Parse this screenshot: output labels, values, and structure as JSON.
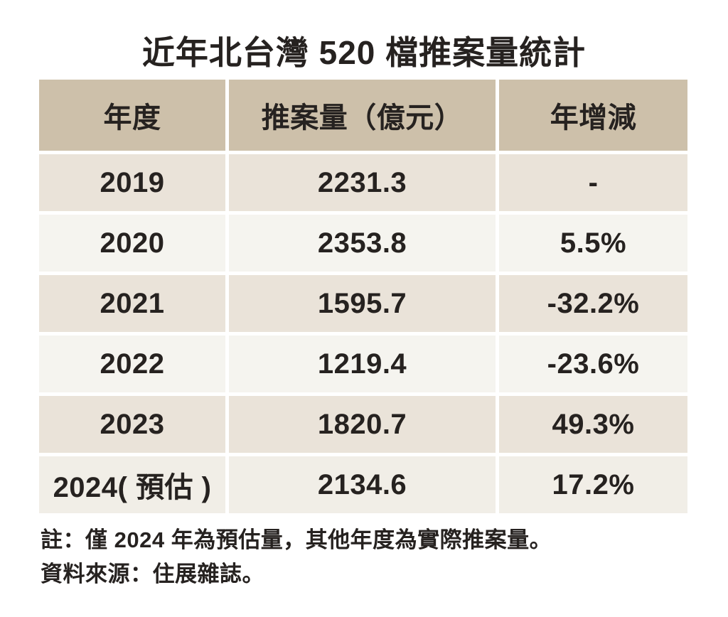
{
  "title": "近年北台灣 520 檔推案量統計",
  "header": {
    "year": "年度",
    "volume": "推案量（億元）",
    "yoy": "年增減"
  },
  "rows": [
    {
      "year": "2019",
      "volume": "2231.3",
      "yoy": "-"
    },
    {
      "year": "2020",
      "volume": "2353.8",
      "yoy": "5.5%"
    },
    {
      "year": "2021",
      "volume": "1595.7",
      "yoy": "-32.2%"
    },
    {
      "year": "2022",
      "volume": "1219.4",
      "yoy": "-23.6%"
    },
    {
      "year": "2023",
      "volume": "1820.7",
      "yoy": "49.3%"
    },
    {
      "year": "2024( 預估 )",
      "volume": "2134.6",
      "yoy": "17.2%"
    }
  ],
  "notes": {
    "line1": "註：僅 2024 年為預估量，其他年度為實際推案量。",
    "line2": "資料來源：住展雜誌。"
  },
  "colors": {
    "header_bg": "#cdc0aa",
    "row_beige": "#eae3d9",
    "row_light": "#f5f4ef",
    "row_last": "#f1eee7",
    "text": "#262220",
    "page_bg": "#ffffff"
  },
  "chart_data": {
    "type": "table",
    "title": "近年北台灣 520 檔推案量統計",
    "columns": [
      "年度",
      "推案量（億元）",
      "年增減"
    ],
    "categories": [
      "2019",
      "2020",
      "2021",
      "2022",
      "2023",
      "2024(預估)"
    ],
    "series": [
      {
        "name": "推案量（億元）",
        "values": [
          2231.3,
          2353.8,
          1595.7,
          1219.4,
          1820.7,
          2134.6
        ]
      },
      {
        "name": "年增減(%)",
        "values": [
          null,
          5.5,
          -32.2,
          -23.6,
          49.3,
          17.2
        ]
      }
    ],
    "annotations": [
      "註：僅 2024 年為預估量，其他年度為實際推案量。",
      "資料來源：住展雜誌。"
    ],
    "layout": "zebra-striped data table, tan header row, centered cells"
  }
}
